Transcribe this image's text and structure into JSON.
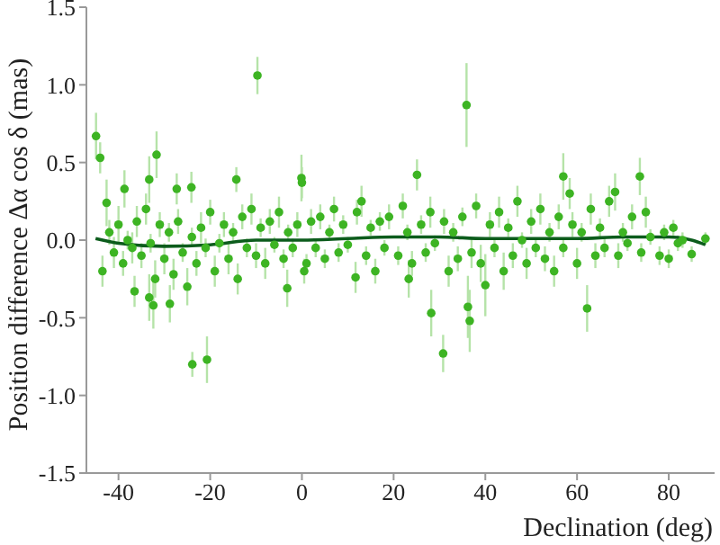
{
  "chart_data": {
    "type": "scatter",
    "xlabel": "Declination (deg)",
    "ylabel": "Position difference Δα cos δ (mas)",
    "xlim": [
      -47,
      90
    ],
    "xticks": [
      -40,
      -20,
      0,
      20,
      40,
      60,
      80
    ],
    "ylim": [
      -1.5,
      1.5
    ],
    "yticks": [
      -1.5,
      {
        "value": -1,
        "label": "-1.0"
      },
      -0.5,
      {
        "value": 0,
        "label": "0.0"
      },
      0.5,
      {
        "value": 1,
        "label": "1.0"
      },
      1.5
    ],
    "series": [
      {
        "color": "#3db423",
        "marker": "circle",
        "x": [
          -44.9,
          -44,
          -42.6,
          -38.7,
          -33.3,
          -31.7,
          -27.3,
          -24.1,
          -14.3,
          -9.7,
          -0.1,
          0,
          25.1,
          35.9,
          57,
          58.4,
          73.7,
          68.3,
          -23.9,
          -20.7,
          30.8,
          28.2,
          36.6,
          36.2,
          62.2,
          -3.2,
          -32.4,
          -33.3,
          -28.8,
          -36.5,
          40,
          11.7,
          23.3,
          -43.5,
          -42,
          -41,
          -40,
          -39,
          -38,
          -37,
          -36,
          -35,
          -34,
          -33,
          -32,
          -31,
          -30,
          -29,
          -28,
          -27,
          -26,
          -25,
          -24,
          -23,
          -22,
          -21,
          -20,
          -19,
          -18,
          -17,
          -16,
          -15,
          -14,
          -13,
          -12,
          -11,
          -10,
          -9,
          -8,
          -7,
          -6,
          -5,
          -4,
          -3,
          -2,
          -1,
          0.5,
          1,
          2,
          3,
          4,
          5,
          6,
          7,
          8,
          9,
          10,
          12,
          13,
          14,
          15,
          16,
          17,
          18,
          19,
          21,
          22,
          23,
          24,
          26,
          27,
          28,
          29,
          31,
          32,
          33,
          34,
          35,
          37,
          38,
          39,
          41,
          42,
          43,
          44,
          45,
          46,
          47,
          48,
          49,
          50,
          51,
          52,
          53,
          54,
          55,
          56,
          57,
          59,
          60,
          61,
          63,
          64,
          65,
          66,
          67,
          69,
          70,
          71,
          72,
          74,
          75,
          76,
          78,
          79,
          80,
          81,
          82,
          83,
          85,
          88
        ],
        "values": [
          0.67,
          0.53,
          0.24,
          0.33,
          0.39,
          0.55,
          0.33,
          0.34,
          0.39,
          1.06,
          0.4,
          0.37,
          0.42,
          0.87,
          0.41,
          0.3,
          0.41,
          0.31,
          -0.8,
          -0.77,
          -0.73,
          -0.47,
          -0.52,
          -0.43,
          -0.44,
          -0.31,
          -0.42,
          -0.37,
          -0.41,
          -0.33,
          -0.29,
          -0.24,
          -0.25,
          -0.2,
          0.05,
          -0.08,
          0.1,
          -0.15,
          0,
          -0.05,
          0.12,
          -0.1,
          0.2,
          -0.02,
          -0.25,
          0.1,
          -0.12,
          0.05,
          -0.22,
          0.12,
          -0.08,
          -0.3,
          0.02,
          -0.15,
          0.08,
          -0.05,
          0.18,
          -0.2,
          -0.02,
          0.1,
          -0.12,
          0.05,
          -0.25,
          0.15,
          -0.05,
          0.2,
          -0.1,
          0.08,
          -0.15,
          0.12,
          -0.03,
          0.18,
          -0.12,
          0.05,
          -0.05,
          0.1,
          -0.2,
          -0.15,
          0.12,
          -0.05,
          0.15,
          -0.12,
          0.05,
          0.2,
          -0.08,
          0.1,
          -0.03,
          0.18,
          0.25,
          -0.1,
          0.08,
          -0.2,
          0.12,
          -0.05,
          0.15,
          -0.1,
          0.22,
          0.05,
          -0.15,
          0.1,
          -0.08,
          0.18,
          -0.02,
          0.12,
          -0.2,
          0.05,
          -0.12,
          0.15,
          -0.08,
          0.22,
          -0.15,
          0.1,
          -0.05,
          0.18,
          -0.2,
          0.08,
          -0.1,
          0.25,
          0,
          -0.15,
          0.12,
          -0.05,
          0.2,
          -0.12,
          0.05,
          -0.2,
          0.15,
          -0.05,
          0.1,
          -0.15,
          0.05,
          0.2,
          -0.1,
          0.08,
          -0.05,
          0.25,
          -0.1,
          0.05,
          -0.02,
          0.15,
          -0.08,
          0.18,
          0.02,
          -0.1,
          0.05,
          -0.12,
          0.08,
          -0.02,
          0,
          -0.09,
          0.01
        ],
        "errors": [
          0.15,
          0.1,
          0.15,
          0.12,
          0.15,
          0.15,
          0.1,
          0.1,
          0.08,
          0.12,
          0.15,
          0.1,
          0.1,
          0.27,
          0.15,
          0.1,
          0.12,
          0.12,
          0.08,
          0.15,
          0.12,
          0.15,
          0.2,
          0.2,
          0.15,
          0.12,
          0.15,
          0.15,
          0.12,
          0.1,
          0.2,
          0.1,
          0.12,
          0.1,
          0.08,
          0.1,
          0.12,
          0.08,
          0.06,
          0.1,
          0.1,
          0.08,
          0.1,
          0.06,
          0.12,
          0.08,
          0.1,
          0.06,
          0.1,
          0.08,
          0.06,
          0.12,
          0.06,
          0.08,
          0.1,
          0.06,
          0.08,
          0.1,
          0.06,
          0.08,
          0.1,
          0.06,
          0.1,
          0.08,
          0.06,
          0.1,
          0.08,
          0.06,
          0.1,
          0.08,
          0.05,
          0.1,
          0.06,
          0.05,
          0.06,
          0.08,
          0.08,
          0.06,
          0.08,
          0.06,
          0.08,
          0.06,
          0.05,
          0.08,
          0.06,
          0.06,
          0.05,
          0.08,
          0.1,
          0.06,
          0.05,
          0.08,
          0.06,
          0.05,
          0.08,
          0.06,
          0.08,
          0.05,
          0.08,
          0.06,
          0.06,
          0.1,
          0.05,
          0.08,
          0.1,
          0.06,
          0.08,
          0.06,
          0.1,
          0.08,
          0.12,
          0.08,
          0.06,
          0.1,
          0.12,
          0.06,
          0.08,
          0.1,
          0.05,
          0.1,
          0.08,
          0.06,
          0.1,
          0.08,
          0.06,
          0.1,
          0.08,
          0.06,
          0.08,
          0.1,
          0.06,
          0.1,
          0.08,
          0.06,
          0.06,
          0.1,
          0.08,
          0.06,
          0.05,
          0.08,
          0.06,
          0.1,
          0.05,
          0.06,
          0.05,
          0.06,
          0.05,
          0.05,
          0.05,
          0.05,
          0.04
        ]
      },
      {
        "type": "line",
        "marker": "none",
        "color": "#0c5c1c",
        "x": [
          -45,
          -40,
          -30,
          -20,
          -10,
          0,
          10,
          20,
          30,
          40,
          50,
          60,
          70,
          80,
          85,
          88
        ],
        "values": [
          0.01,
          -0.02,
          -0.04,
          -0.03,
          0,
          0,
          0.01,
          0.02,
          0.02,
          0.01,
          0.01,
          0.01,
          0.02,
          0.02,
          0,
          -0.03
        ]
      }
    ]
  }
}
